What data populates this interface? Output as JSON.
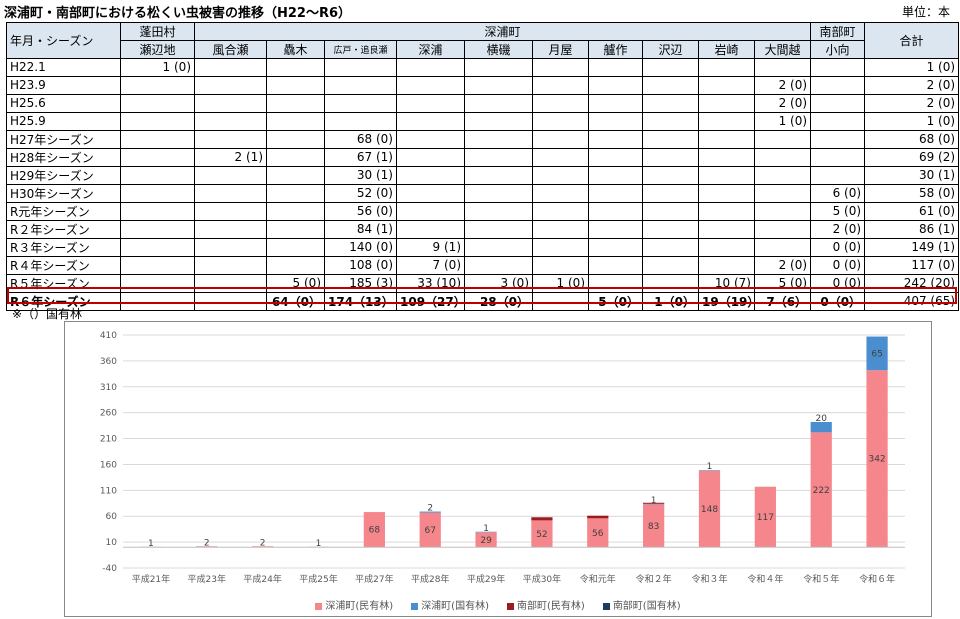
{
  "title": "深浦町・南部町における松くい虫被害の推移（H22〜R6）",
  "unit": "単位：本",
  "note": "※（）国有林",
  "table": {
    "header_top": {
      "period": "年月・シーズン",
      "hokota": "蓬田村",
      "fukaura": "深浦町",
      "nanbu": "南部町",
      "total": "合計"
    },
    "header_sub": [
      "瀬辺地",
      "風合瀬",
      "驫木",
      "広戸・追良瀬",
      "深浦",
      "横磯",
      "月屋",
      "艫作",
      "沢辺",
      "岩崎",
      "大間越",
      "小向"
    ],
    "rows": [
      {
        "label": "H22.1",
        "cells": [
          "1 (0)",
          "",
          "",
          "",
          "",
          "",
          "",
          "",
          "",
          "",
          "",
          ""
        ],
        "total": "1 (0)"
      },
      {
        "label": "H23.9",
        "cells": [
          "",
          "",
          "",
          "",
          "",
          "",
          "",
          "",
          "",
          "",
          "2 (0)",
          ""
        ],
        "total": "2 (0)"
      },
      {
        "label": "H25.6",
        "cells": [
          "",
          "",
          "",
          "",
          "",
          "",
          "",
          "",
          "",
          "",
          "2 (0)",
          ""
        ],
        "total": "2 (0)"
      },
      {
        "label": "H25.9",
        "cells": [
          "",
          "",
          "",
          "",
          "",
          "",
          "",
          "",
          "",
          "",
          "1 (0)",
          ""
        ],
        "total": "1 (0)"
      },
      {
        "label": "H27年シーズン",
        "cells": [
          "",
          "",
          "",
          "68 (0)",
          "",
          "",
          "",
          "",
          "",
          "",
          "",
          ""
        ],
        "total": "68 (0)"
      },
      {
        "label": "H28年シーズン",
        "cells": [
          "",
          "2 (1)",
          "",
          "67 (1)",
          "",
          "",
          "",
          "",
          "",
          "",
          "",
          ""
        ],
        "total": "69 (2)"
      },
      {
        "label": "H29年シーズン",
        "cells": [
          "",
          "",
          "",
          "30 (1)",
          "",
          "",
          "",
          "",
          "",
          "",
          "",
          ""
        ],
        "total": "30 (1)"
      },
      {
        "label": "H30年シーズン",
        "cells": [
          "",
          "",
          "",
          "52 (0)",
          "",
          "",
          "",
          "",
          "",
          "",
          "",
          "6 (0)"
        ],
        "total": "58 (0)"
      },
      {
        "label": "R元年シーズン",
        "cells": [
          "",
          "",
          "",
          "56 (0)",
          "",
          "",
          "",
          "",
          "",
          "",
          "",
          "5 (0)"
        ],
        "total": "61 (0)"
      },
      {
        "label": "R２年シーズン",
        "cells": [
          "",
          "",
          "",
          "84 (1)",
          "",
          "",
          "",
          "",
          "",
          "",
          "",
          "2 (0)"
        ],
        "total": "86 (1)"
      },
      {
        "label": "R３年シーズン",
        "cells": [
          "",
          "",
          "",
          "140 (0)",
          "9 (1)",
          "",
          "",
          "",
          "",
          "",
          "",
          "0 (0)"
        ],
        "total": "149 (1)"
      },
      {
        "label": "R４年シーズン",
        "cells": [
          "",
          "",
          "",
          "108 (0)",
          "7 (0)",
          "",
          "",
          "",
          "",
          "",
          "2 (0)",
          "0 (0)"
        ],
        "total": "117 (0)"
      },
      {
        "label": "R５年シーズン",
        "cells": [
          "",
          "",
          "5 (0)",
          "185 (3)",
          "33 (10)",
          "3 (0)",
          "1 (0)",
          "",
          "",
          "10 (7)",
          "5 (0)",
          "0 (0)"
        ],
        "total": "242 (20)"
      },
      {
        "label": "R６年シーズン",
        "cells": [
          "",
          "",
          "64（0）",
          "174（13）",
          "109（27）",
          "28（0）",
          "",
          "5（0）",
          "1（0）",
          "19（19）",
          "7（6）",
          "0（0）"
        ],
        "total": "407 (65)"
      }
    ]
  },
  "chart_data": {
    "type": "bar",
    "stacked": true,
    "categories": [
      "平成21年",
      "平成23年",
      "平成24年",
      "平成25年",
      "平成27年",
      "平成28年",
      "平成29年",
      "平成30年",
      "令和元年",
      "令和２年",
      "令和３年",
      "令和４年",
      "令和５年",
      "令和６年"
    ],
    "series": [
      {
        "name": "深浦町(民有林)",
        "color": "#f4868c",
        "values": [
          1,
          2,
          2,
          1,
          68,
          67,
          29,
          52,
          56,
          83,
          148,
          117,
          222,
          342
        ]
      },
      {
        "name": "深浦町(国有林)",
        "color": "#4a8ed0",
        "values": [
          0,
          0,
          0,
          0,
          0,
          2,
          1,
          0,
          0,
          1,
          1,
          0,
          20,
          65
        ]
      },
      {
        "name": "南部町(民有林)",
        "color": "#9b1b1f",
        "values": [
          0,
          0,
          0,
          0,
          0,
          0,
          0,
          6,
          5,
          2,
          0,
          0,
          0,
          0
        ]
      },
      {
        "name": "南部町(国有林)",
        "color": "#1f3864",
        "values": [
          0,
          0,
          0,
          0,
          0,
          0,
          0,
          0,
          0,
          0,
          0,
          0,
          0,
          0
        ]
      }
    ],
    "data_labels": {
      "深浦町(民有林)": [
        "1",
        "2",
        "2",
        "1",
        "68",
        "67",
        "29",
        "52",
        "56",
        "83",
        "148",
        "117",
        "222",
        "342"
      ],
      "深浦町(国有林)": [
        "",
        "",
        "",
        "",
        "",
        "2",
        "1",
        "",
        "",
        "1",
        "1",
        "",
        "20",
        "65"
      ]
    },
    "ylim": [
      -40,
      410
    ],
    "yticks": [
      -40,
      10,
      60,
      110,
      160,
      210,
      260,
      310,
      360,
      410
    ],
    "grid": true,
    "legend": "bottom"
  }
}
